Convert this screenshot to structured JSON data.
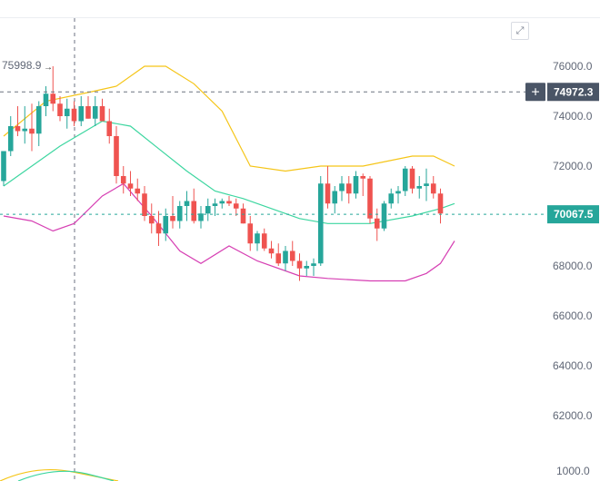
{
  "ui": {
    "expand_icon": "expand-icon",
    "crosshair_icon": "plus-icon",
    "colors": {
      "up": "#26a69a",
      "down": "#ef5350",
      "bb_upper": "#f5c518",
      "bb_mid": "#3dd6a0",
      "bb_lower": "#d63fb3",
      "crosshair_badge": "#4a5566",
      "last_price_badge": "#26a69a"
    }
  },
  "chart_data": {
    "type": "candlestick",
    "y_axis": {
      "ticks": [
        "76000.0",
        "74000.0",
        "72000.0",
        "70000.0",
        "68000.0",
        "66000.0",
        "64000.0",
        "62000.0"
      ],
      "range": [
        60500,
        77500
      ]
    },
    "crosshair_price": "74972.3",
    "last_price": "70067.5",
    "high_marker": "75998.9",
    "volume_axis_label": "1000.0",
    "candles": [
      [
        71400,
        72600,
        71200,
        72600
      ],
      [
        72600,
        74000,
        72400,
        73600
      ],
      [
        73600,
        74400,
        73200,
        73400
      ],
      [
        73400,
        74400,
        72900,
        73500
      ],
      [
        73500,
        74500,
        72600,
        73300
      ],
      [
        73300,
        74600,
        72800,
        74400
      ],
      [
        74400,
        75200,
        74000,
        74900
      ],
      [
        74900,
        76000,
        74200,
        74500
      ],
      [
        74500,
        74800,
        73800,
        74000
      ],
      [
        74000,
        74700,
        73500,
        74300
      ],
      [
        74300,
        74600,
        73600,
        73800
      ],
      [
        73800,
        74800,
        73600,
        74400
      ],
      [
        74400,
        74800,
        73900,
        73900
      ],
      [
        73900,
        74800,
        73600,
        74400
      ],
      [
        74400,
        74700,
        73800,
        73800
      ],
      [
        73800,
        74300,
        72900,
        73200
      ],
      [
        73200,
        73600,
        71300,
        71600
      ],
      [
        71600,
        72000,
        70900,
        71300
      ],
      [
        71300,
        71800,
        70800,
        71100
      ],
      [
        71100,
        71500,
        70600,
        70900
      ],
      [
        70900,
        71200,
        69800,
        70000
      ],
      [
        70000,
        70500,
        69300,
        69700
      ],
      [
        69700,
        70200,
        68800,
        69300
      ],
      [
        69300,
        70300,
        69000,
        70000
      ],
      [
        70000,
        70800,
        69500,
        69800
      ],
      [
        69800,
        70600,
        69500,
        70400
      ],
      [
        70400,
        71000,
        69800,
        70600
      ],
      [
        70600,
        71100,
        69700,
        69800
      ],
      [
        69800,
        70400,
        69500,
        70100
      ],
      [
        70100,
        70700,
        69800,
        70400
      ],
      [
        70400,
        70700,
        70000,
        70500
      ],
      [
        70500,
        70700,
        70300,
        70600
      ],
      [
        70600,
        70800,
        70400,
        70500
      ],
      [
        70500,
        70700,
        70000,
        70300
      ],
      [
        70300,
        70500,
        69700,
        69700
      ],
      [
        69700,
        70000,
        68600,
        68900
      ],
      [
        68900,
        69400,
        68600,
        69300
      ],
      [
        69300,
        69500,
        68600,
        68700
      ],
      [
        68700,
        69000,
        68300,
        68500
      ],
      [
        68500,
        68900,
        68000,
        68100
      ],
      [
        68100,
        68800,
        67800,
        68600
      ],
      [
        68600,
        69000,
        68000,
        68200
      ],
      [
        68200,
        68500,
        67400,
        67900
      ],
      [
        67900,
        68200,
        67600,
        68000
      ],
      [
        68000,
        68300,
        67600,
        68100
      ],
      [
        68100,
        71600,
        68000,
        71300
      ],
      [
        71300,
        72000,
        70300,
        70500
      ],
      [
        70500,
        71200,
        70100,
        71000
      ],
      [
        71000,
        71600,
        70600,
        71300
      ],
      [
        71300,
        71600,
        70500,
        70900
      ],
      [
        70900,
        71800,
        70700,
        71600
      ],
      [
        71600,
        71700,
        70800,
        71500
      ],
      [
        71500,
        71600,
        69700,
        69900
      ],
      [
        69900,
        70300,
        69000,
        69500
      ],
      [
        69500,
        70600,
        69400,
        70500
      ],
      [
        70500,
        71100,
        70300,
        70900
      ],
      [
        70900,
        71200,
        70500,
        71000
      ],
      [
        71000,
        72000,
        70800,
        71900
      ],
      [
        71900,
        72000,
        70900,
        71100
      ],
      [
        71100,
        71600,
        70700,
        71200
      ],
      [
        71200,
        71900,
        70600,
        71300
      ],
      [
        71300,
        71600,
        70700,
        70900
      ],
      [
        70900,
        71100,
        69700,
        70100
      ]
    ],
    "bollinger": {
      "upper": [
        [
          0,
          73200
        ],
        [
          6,
          74600
        ],
        [
          12,
          74950
        ],
        [
          16,
          75200
        ],
        [
          20,
          76000
        ],
        [
          23,
          76000
        ],
        [
          27,
          75300
        ],
        [
          31,
          74200
        ],
        [
          35,
          72000
        ],
        [
          40,
          71800
        ],
        [
          45,
          72000
        ],
        [
          51,
          72000
        ],
        [
          58,
          72400
        ],
        [
          61,
          72400
        ],
        [
          64,
          72000
        ]
      ],
      "middle": [
        [
          0,
          71200
        ],
        [
          8,
          72800
        ],
        [
          14,
          73800
        ],
        [
          18,
          73600
        ],
        [
          22,
          72700
        ],
        [
          26,
          71800
        ],
        [
          30,
          71000
        ],
        [
          34,
          70700
        ],
        [
          38,
          70300
        ],
        [
          42,
          69900
        ],
        [
          46,
          69700
        ],
        [
          52,
          69700
        ],
        [
          58,
          70000
        ],
        [
          62,
          70300
        ],
        [
          64,
          70500
        ]
      ],
      "lower": [
        [
          0,
          70000
        ],
        [
          4,
          69800
        ],
        [
          7,
          69400
        ],
        [
          10,
          69700
        ],
        [
          14,
          70800
        ],
        [
          17,
          71300
        ],
        [
          21,
          70000
        ],
        [
          25,
          68600
        ],
        [
          28,
          68100
        ],
        [
          32,
          68800
        ],
        [
          36,
          68200
        ],
        [
          42,
          67600
        ],
        [
          46,
          67500
        ],
        [
          52,
          67400
        ],
        [
          57,
          67400
        ],
        [
          60,
          67700
        ],
        [
          62,
          68100
        ],
        [
          64,
          69000
        ]
      ]
    }
  }
}
